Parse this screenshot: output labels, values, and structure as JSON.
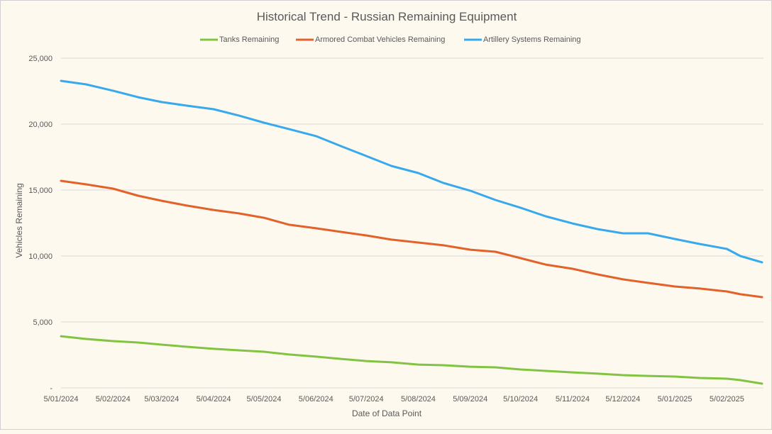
{
  "chart_data": {
    "type": "line",
    "title": "Historical Trend - Russian Remaining Equipment",
    "xlabel": "Date of Data Point",
    "ylabel": "Vehicles Remaining",
    "ylim": [
      0,
      25000
    ],
    "xlim": [
      "2024-01-05",
      "2025-02-26"
    ],
    "yticks": [
      0,
      5000,
      10000,
      15000,
      20000,
      25000
    ],
    "ytick_labels": [
      "-",
      "5,000",
      "10,000",
      "15,000",
      "20,000",
      "25,000"
    ],
    "xticks": [
      "2024-01-05",
      "2024-02-05",
      "2024-03-05",
      "2024-04-05",
      "2024-05-05",
      "2024-06-05",
      "2024-07-05",
      "2024-08-05",
      "2024-09-05",
      "2024-10-05",
      "2024-11-05",
      "2024-12-05",
      "2025-01-05",
      "2025-02-05"
    ],
    "xtick_labels": [
      "5/01/2024",
      "5/02/2024",
      "5/03/2024",
      "5/04/2024",
      "5/05/2024",
      "5/06/2024",
      "5/07/2024",
      "5/08/2024",
      "5/09/2024",
      "5/10/2024",
      "5/11/2024",
      "5/12/2024",
      "5/01/2025",
      "5/02/2025"
    ],
    "grid": true,
    "legend": "top",
    "x": [
      "2024-01-05",
      "2024-01-20",
      "2024-02-05",
      "2024-02-20",
      "2024-03-05",
      "2024-03-20",
      "2024-04-05",
      "2024-04-20",
      "2024-05-05",
      "2024-05-20",
      "2024-06-05",
      "2024-06-20",
      "2024-07-05",
      "2024-07-20",
      "2024-08-05",
      "2024-08-20",
      "2024-09-05",
      "2024-09-20",
      "2024-10-05",
      "2024-10-20",
      "2024-11-05",
      "2024-11-20",
      "2024-12-05",
      "2024-12-20",
      "2025-01-05",
      "2025-01-20",
      "2025-02-05",
      "2025-02-13",
      "2025-02-26"
    ],
    "series": [
      {
        "name": "Tanks Remaining",
        "color": "#82c341",
        "values": [
          3920,
          3710,
          3550,
          3440,
          3280,
          3120,
          2960,
          2850,
          2740,
          2530,
          2370,
          2200,
          2040,
          1940,
          1770,
          1720,
          1610,
          1560,
          1400,
          1290,
          1180,
          1080,
          970,
          910,
          860,
          750,
          700,
          590,
          320
        ]
      },
      {
        "name": "Armored Combat Vehicles Remaining",
        "color": "#e2622a",
        "values": [
          15700,
          15430,
          15110,
          14570,
          14190,
          13820,
          13490,
          13230,
          12900,
          12370,
          12100,
          11830,
          11560,
          11240,
          11020,
          10810,
          10480,
          10320,
          9840,
          9350,
          9030,
          8600,
          8230,
          7960,
          7690,
          7530,
          7310,
          7100,
          6880
        ]
      },
      {
        "name": "Artillery Systems Remaining",
        "color": "#37a9ec",
        "values": [
          23280,
          23010,
          22530,
          22040,
          21670,
          21400,
          21130,
          20650,
          20110,
          19620,
          19090,
          18330,
          17580,
          16830,
          16290,
          15540,
          14950,
          14250,
          13660,
          13010,
          12470,
          12040,
          11720,
          11720,
          11290,
          10910,
          10540,
          10000,
          9520
        ]
      }
    ]
  }
}
